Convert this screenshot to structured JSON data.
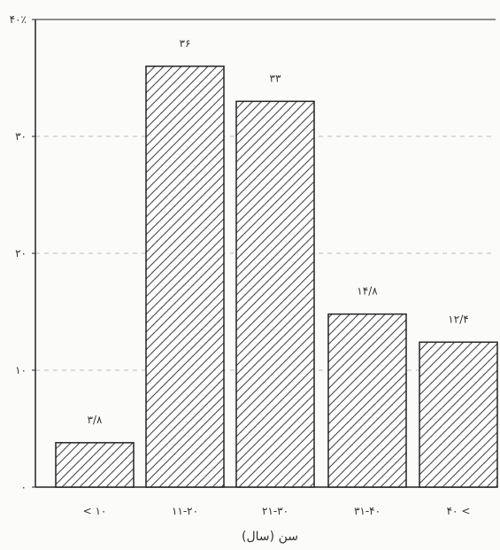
{
  "chart_data": {
    "type": "bar",
    "categories": [
      "< ۱۰",
      "۱۱-۲۰",
      "۲۱-۳۰",
      "۳۱-۴۰",
      "۴۰ <"
    ],
    "values": [
      3.8,
      36,
      33,
      14.8,
      12.4
    ],
    "value_labels": [
      "۳/۸",
      "۳۶",
      "۳۳",
      "۱۴/۸",
      "۱۲/۴"
    ],
    "title": "",
    "xlabel": "سن (سال)",
    "ylabel": "",
    "ylim": [
      0,
      40
    ],
    "y_ticks": [
      0,
      10,
      20,
      30,
      40
    ],
    "y_tick_labels": [
      "۰",
      "۱۰",
      "۲۰",
      "۳۰",
      "۴۰٪"
    ],
    "grid": "horizontal dashed",
    "bar_fill": "diagonal hatch with dots",
    "colors": {
      "bar_stroke": "#222222",
      "hatch": "#444444",
      "grid": "#bbbbbb",
      "axis": "#222222"
    }
  }
}
